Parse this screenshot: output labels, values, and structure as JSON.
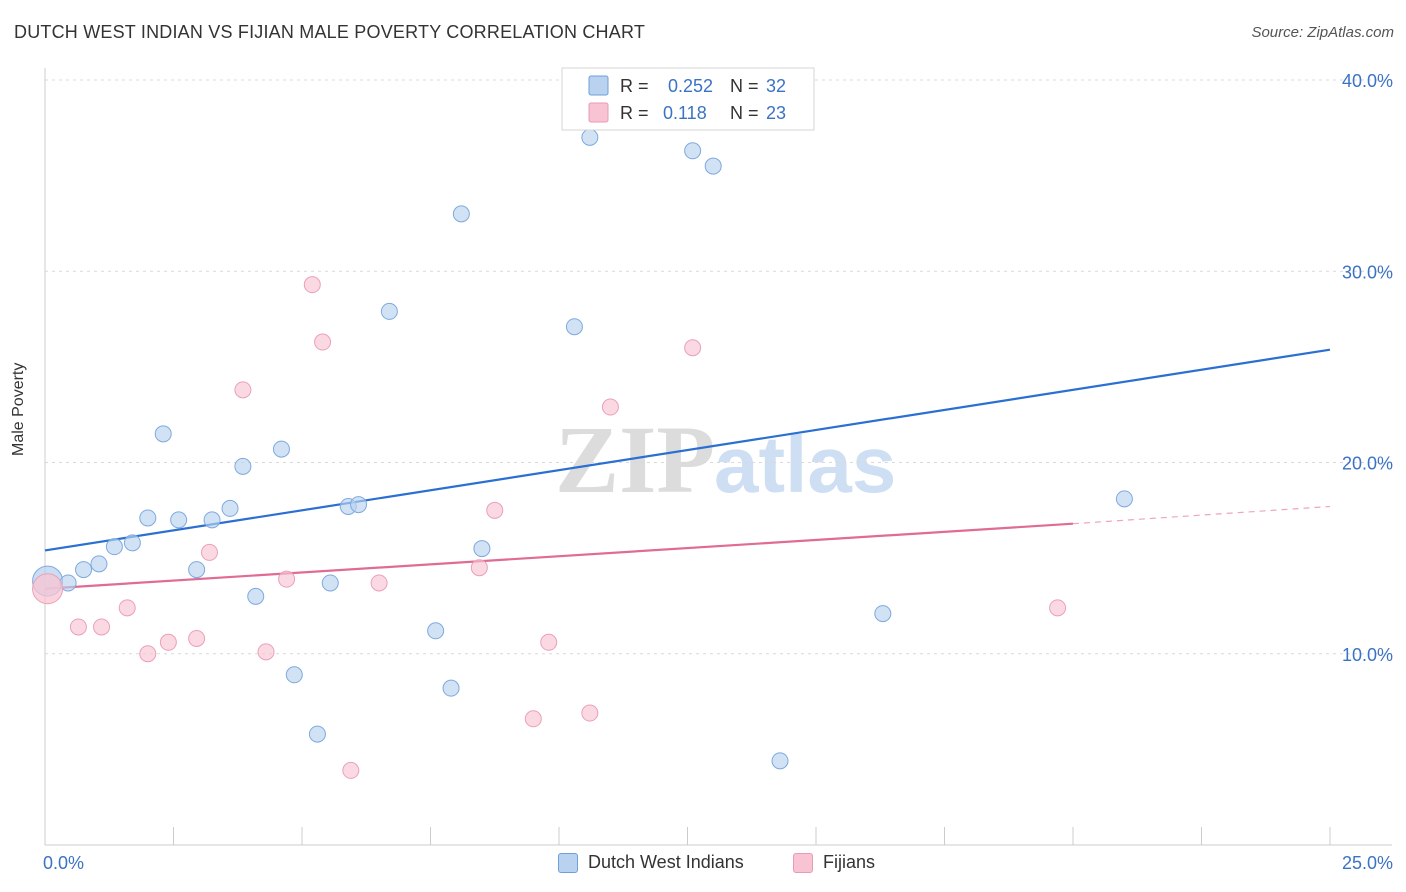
{
  "header": {
    "title": "DUTCH WEST INDIAN VS FIJIAN MALE POVERTY CORRELATION CHART",
    "source": "Source: ZipAtlas.com"
  },
  "watermark": {
    "zip": "ZIP",
    "atlas": "atlas"
  },
  "colors": {
    "blue": "#3b73c4",
    "blue_fill": "#b9d2f0",
    "blue_line": "#2a6fd1",
    "pink": "#e06b95",
    "pink_fill": "#f8c4d3",
    "grid": "#d9d9d9"
  },
  "legend": {
    "r_label": "R =",
    "n_label": "N =",
    "series": [
      {
        "r": "0.252",
        "n": "32"
      },
      {
        "r": "0.118",
        "n": "23"
      }
    ]
  },
  "chart_data": {
    "type": "scatter",
    "title": "DUTCH WEST INDIAN VS FIJIAN MALE POVERTY CORRELATION CHART",
    "xlabel": "",
    "ylabel": "Male Poverty",
    "xlim": [
      0,
      25
    ],
    "ylim": [
      0,
      40
    ],
    "x_tick_labels": [
      "0.0%",
      "25.0%"
    ],
    "y_ticks": [
      10,
      20,
      30,
      40
    ],
    "y_tick_labels": [
      "10.0%",
      "20.0%",
      "30.0%",
      "40.0%"
    ],
    "grid": true,
    "legend_position": "top-center",
    "series": [
      {
        "name": "Dutch West Indians",
        "color": "#3b73c4",
        "r": 0.252,
        "n": 32,
        "trend": {
          "x0": 0,
          "y0": 15.4,
          "x1": 25,
          "y1": 25.9
        },
        "points": [
          [
            0.05,
            13.8
          ],
          [
            0.45,
            13.7
          ],
          [
            0.75,
            14.4
          ],
          [
            1.05,
            14.7
          ],
          [
            1.35,
            15.6
          ],
          [
            1.7,
            15.8
          ],
          [
            2.0,
            17.1
          ],
          [
            2.3,
            21.5
          ],
          [
            2.6,
            17.0
          ],
          [
            2.95,
            14.4
          ],
          [
            3.25,
            17.0
          ],
          [
            3.6,
            17.6
          ],
          [
            3.85,
            19.8
          ],
          [
            4.1,
            13.0
          ],
          [
            4.6,
            20.7
          ],
          [
            4.85,
            8.9
          ],
          [
            5.3,
            5.8
          ],
          [
            5.55,
            13.7
          ],
          [
            5.9,
            17.7
          ],
          [
            6.1,
            17.8
          ],
          [
            6.7,
            27.9
          ],
          [
            7.6,
            11.2
          ],
          [
            7.9,
            8.2
          ],
          [
            8.1,
            33.0
          ],
          [
            8.5,
            15.5
          ],
          [
            10.3,
            27.1
          ],
          [
            10.6,
            37.0
          ],
          [
            12.6,
            36.3
          ],
          [
            13.0,
            35.5
          ],
          [
            14.3,
            4.4
          ],
          [
            16.3,
            12.1
          ],
          [
            21.0,
            18.1
          ]
        ]
      },
      {
        "name": "Fijians",
        "color": "#e06b95",
        "r": 0.118,
        "n": 23,
        "trend": {
          "x0": 0,
          "y0": 13.4,
          "x1": 20,
          "y1": 16.8,
          "dash_x1": 25,
          "dash_y1": 17.7
        },
        "points": [
          [
            0.05,
            13.4
          ],
          [
            0.65,
            11.4
          ],
          [
            1.1,
            11.4
          ],
          [
            1.6,
            12.4
          ],
          [
            2.0,
            10.0
          ],
          [
            2.4,
            10.6
          ],
          [
            2.95,
            10.8
          ],
          [
            3.2,
            15.3
          ],
          [
            3.85,
            23.8
          ],
          [
            4.3,
            10.1
          ],
          [
            4.7,
            13.9
          ],
          [
            5.2,
            29.3
          ],
          [
            5.4,
            26.3
          ],
          [
            5.95,
            3.9
          ],
          [
            6.5,
            13.7
          ],
          [
            8.45,
            14.5
          ],
          [
            8.75,
            17.5
          ],
          [
            9.5,
            6.6
          ],
          [
            9.8,
            10.6
          ],
          [
            10.6,
            6.9
          ],
          [
            11.0,
            22.9
          ],
          [
            12.6,
            26.0
          ],
          [
            19.7,
            12.4
          ]
        ]
      }
    ]
  }
}
